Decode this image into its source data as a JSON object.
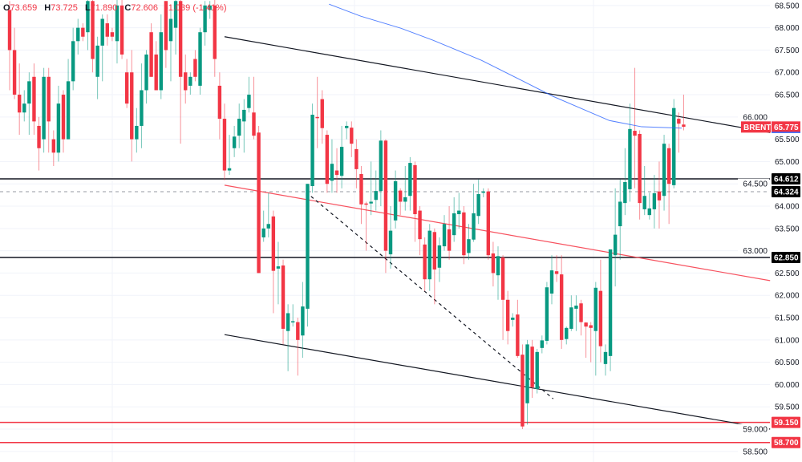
{
  "legend": {
    "o_label": "O",
    "o": "73.659",
    "h_label": "H",
    "h": "73.725",
    "l_label": "L",
    "l": "71.890",
    "c_label": "C",
    "c": "72.606",
    "change": "-1.039 (-1.41%)"
  },
  "colors": {
    "up": "#089981",
    "down": "#f23645",
    "ma": "#2962ff",
    "level": "#131722",
    "support": "#f23645",
    "trend_red": "#f7525f"
  },
  "chart_data": {
    "type": "candlestick",
    "symbol": "BRENT",
    "last_price": "65.775",
    "ylim": [
      58.4,
      68.55
    ],
    "yticks": [
      "58.500",
      "59.000",
      "59.500",
      "60.000",
      "60.500",
      "61.000",
      "61.500",
      "62.000",
      "62.500",
      "63.000",
      "63.500",
      "64.000",
      "64.500",
      "65.000",
      "65.500",
      "66.000",
      "66.500",
      "67.000",
      "67.500",
      "68.000",
      "68.500"
    ],
    "candles_ohlc": [
      [
        68.4,
        68.6,
        66.6,
        67.5
      ],
      [
        67.5,
        68.0,
        66.4,
        66.5
      ],
      [
        66.5,
        67.2,
        65.6,
        66.1
      ],
      [
        66.1,
        66.6,
        65.9,
        66.3
      ],
      [
        66.3,
        67.0,
        65.6,
        66.8
      ],
      [
        66.9,
        67.2,
        65.6,
        65.9
      ],
      [
        65.8,
        66.0,
        64.8,
        65.3
      ],
      [
        65.5,
        67.1,
        65.2,
        66.9
      ],
      [
        66.9,
        67.1,
        65.2,
        65.9
      ],
      [
        65.5,
        65.7,
        64.9,
        65.2
      ],
      [
        65.2,
        66.7,
        65.0,
        66.3
      ],
      [
        66.5,
        66.6,
        65.2,
        65.5
      ],
      [
        65.5,
        67.3,
        65.5,
        66.8
      ],
      [
        66.8,
        68.0,
        66.6,
        67.7
      ],
      [
        67.7,
        68.2,
        67.4,
        68.0
      ],
      [
        68.0,
        68.1,
        67.7,
        67.8
      ],
      [
        67.9,
        68.7,
        67.5,
        68.6
      ],
      [
        68.6,
        68.7,
        67.0,
        67.3
      ],
      [
        66.9,
        67.8,
        66.4,
        67.6
      ],
      [
        67.6,
        68.3,
        66.8,
        68.2
      ],
      [
        68.1,
        68.3,
        67.6,
        67.8
      ],
      [
        67.9,
        68.0,
        67.7,
        67.8
      ],
      [
        67.7,
        68.7,
        67.2,
        68.5
      ],
      [
        68.5,
        68.7,
        67.3,
        67.4
      ],
      [
        67.0,
        67.3,
        66.2,
        66.3
      ],
      [
        67.0,
        67.5,
        65.0,
        65.5
      ],
      [
        65.5,
        66.2,
        65.2,
        65.8
      ],
      [
        65.8,
        67.2,
        65.3,
        66.6
      ],
      [
        66.6,
        67.5,
        66.3,
        67.4
      ],
      [
        67.9,
        68.1,
        66.9,
        66.9
      ],
      [
        67.4,
        67.7,
        66.6,
        66.6
      ],
      [
        66.6,
        68.3,
        66.4,
        67.9
      ],
      [
        68.6,
        68.6,
        67.1,
        67.5
      ],
      [
        67.7,
        68.5,
        66.8,
        68.2
      ],
      [
        68.0,
        68.7,
        67.4,
        68.6
      ],
      [
        68.6,
        68.7,
        65.4,
        66.9
      ],
      [
        67.0,
        67.4,
        66.3,
        66.6
      ],
      [
        66.7,
        67.0,
        66.5,
        66.9
      ],
      [
        67.3,
        67.5,
        66.8,
        66.9
      ],
      [
        66.7,
        68.0,
        66.5,
        67.9
      ],
      [
        67.9,
        68.6,
        67.6,
        68.5
      ],
      [
        68.4,
        68.6,
        68.2,
        68.5
      ],
      [
        68.5,
        68.7,
        66.9,
        67.3
      ],
      [
        66.7,
        67.0,
        65.5,
        65.96
      ],
      [
        65.96,
        66.3,
        64.58,
        64.8
      ],
      [
        64.8,
        65.6,
        64.7,
        64.85
      ],
      [
        65.3,
        65.8,
        65.1,
        65.56
      ],
      [
        65.58,
        66.3,
        65.3,
        65.96
      ],
      [
        65.9,
        66.4,
        65.2,
        66.16
      ],
      [
        66.2,
        66.9,
        66.1,
        66.5
      ],
      [
        66.1,
        66.9,
        65.5,
        65.58
      ],
      [
        65.65,
        65.8,
        62.5,
        62.5
      ],
      [
        63.3,
        63.9,
        63.2,
        63.5
      ],
      [
        63.5,
        64.3,
        63.3,
        63.6
      ],
      [
        63.77,
        63.9,
        61.6,
        62.55
      ],
      [
        62.6,
        63.2,
        61.8,
        62.65
      ],
      [
        62.67,
        62.8,
        60.9,
        61.25
      ],
      [
        61.2,
        61.8,
        60.3,
        61.6
      ],
      [
        61.4,
        61.8,
        61.3,
        61.42
      ],
      [
        61.4,
        61.5,
        60.2,
        61.0
      ],
      [
        61.1,
        62.3,
        60.6,
        61.75
      ],
      [
        61.7,
        64.5,
        61.3,
        64.5
      ],
      [
        64.45,
        66.3,
        64.3,
        66.05
      ],
      [
        66.0,
        66.9,
        65.3,
        65.98
      ],
      [
        66.4,
        66.6,
        65.4,
        65.75
      ],
      [
        65.6,
        65.7,
        64.3,
        64.5
      ],
      [
        64.57,
        65.5,
        64.3,
        64.95
      ],
      [
        64.8,
        65.3,
        64.3,
        64.7
      ],
      [
        64.68,
        65.8,
        64.4,
        65.33
      ],
      [
        65.75,
        65.9,
        65.5,
        65.8
      ],
      [
        65.76,
        65.9,
        65.1,
        65.4
      ],
      [
        65.28,
        65.5,
        64.4,
        64.83
      ],
      [
        64.72,
        64.9,
        63.6,
        64.04
      ],
      [
        64.06,
        64.1,
        63.0,
        64.05
      ],
      [
        64.06,
        65.0,
        63.8,
        64.1
      ],
      [
        64.14,
        64.8,
        63.9,
        64.34
      ],
      [
        64.34,
        65.7,
        64.0,
        65.47
      ],
      [
        65.47,
        65.5,
        62.5,
        63.0
      ],
      [
        62.92,
        64.0,
        62.6,
        63.45
      ],
      [
        63.68,
        64.8,
        63.5,
        64.56
      ],
      [
        64.35,
        64.4,
        63.8,
        64.1
      ],
      [
        64.1,
        64.9,
        63.9,
        64.2
      ],
      [
        64.23,
        65.1,
        63.9,
        64.97
      ],
      [
        64.92,
        65.0,
        63.2,
        63.82
      ],
      [
        63.9,
        64.0,
        62.9,
        63.26
      ],
      [
        63.14,
        63.3,
        62.1,
        62.36
      ],
      [
        62.36,
        63.6,
        62.1,
        63.45
      ],
      [
        63.42,
        63.5,
        61.8,
        62.58
      ],
      [
        62.62,
        63.3,
        62.3,
        63.12
      ],
      [
        63.1,
        63.8,
        63.0,
        63.6
      ],
      [
        63.48,
        64.0,
        62.8,
        63.0
      ],
      [
        63.35,
        64.2,
        63.2,
        63.84
      ],
      [
        63.82,
        64.3,
        63.5,
        63.9
      ],
      [
        63.86,
        64.0,
        62.7,
        62.9
      ],
      [
        62.95,
        63.6,
        62.8,
        63.26
      ],
      [
        63.25,
        64.5,
        63.2,
        63.84
      ],
      [
        63.78,
        64.6,
        63.6,
        64.27
      ],
      [
        64.3,
        64.4,
        64.2,
        64.33
      ],
      [
        64.33,
        64.4,
        62.8,
        62.9
      ],
      [
        62.94,
        63.2,
        62.2,
        62.5
      ],
      [
        62.45,
        63.1,
        61.9,
        62.88
      ],
      [
        62.85,
        62.9,
        61.0,
        61.9
      ],
      [
        61.9,
        62.1,
        60.9,
        61.2
      ],
      [
        61.45,
        61.6,
        61.3,
        61.5
      ],
      [
        61.57,
        61.9,
        60.6,
        60.64
      ],
      [
        60.67,
        60.9,
        59.0,
        59.06
      ],
      [
        59.58,
        61.0,
        59.1,
        60.9
      ],
      [
        60.85,
        61.0,
        59.7,
        59.94
      ],
      [
        59.9,
        60.8,
        59.8,
        60.73
      ],
      [
        60.82,
        61.1,
        60.7,
        60.99
      ],
      [
        60.98,
        62.3,
        60.9,
        62.18
      ],
      [
        62.04,
        62.9,
        61.8,
        62.56
      ],
      [
        62.54,
        62.9,
        62.3,
        62.48
      ],
      [
        62.47,
        62.9,
        60.8,
        61.0
      ],
      [
        61.02,
        61.3,
        60.9,
        61.27
      ],
      [
        61.25,
        62.0,
        61.2,
        61.73
      ],
      [
        61.7,
        62.0,
        61.2,
        61.77
      ],
      [
        61.82,
        61.9,
        61.1,
        61.4
      ],
      [
        61.39,
        61.4,
        60.6,
        61.3
      ],
      [
        61.33,
        61.4,
        60.5,
        61.27
      ],
      [
        61.2,
        62.3,
        60.2,
        62.17
      ],
      [
        62.1,
        62.8,
        60.5,
        60.86
      ],
      [
        60.46,
        60.9,
        60.2,
        60.73
      ],
      [
        60.64,
        63.0,
        60.3,
        63.03
      ],
      [
        62.9,
        64.4,
        62.2,
        63.36
      ],
      [
        63.55,
        64.6,
        62.8,
        64.1
      ],
      [
        64.07,
        65.3,
        63.8,
        64.54
      ],
      [
        64.38,
        66.3,
        64.1,
        65.73
      ],
      [
        65.69,
        67.1,
        64.4,
        65.58
      ],
      [
        65.62,
        65.7,
        63.7,
        64.07
      ],
      [
        63.93,
        64.9,
        63.8,
        64.23
      ],
      [
        63.8,
        64.3,
        63.7,
        63.95
      ],
      [
        63.93,
        64.7,
        63.5,
        64.29
      ],
      [
        64.33,
        65.0,
        63.5,
        64.13
      ],
      [
        64.23,
        65.6,
        63.9,
        65.4
      ],
      [
        65.3,
        65.4,
        63.6,
        64.5
      ],
      [
        64.47,
        66.4,
        64.4,
        66.2
      ],
      [
        65.96,
        66.1,
        65.2,
        65.85
      ],
      [
        65.83,
        66.5,
        65.7,
        65.78
      ]
    ],
    "horizontal_levels": [
      {
        "price": 64.612,
        "label": "64.612",
        "style": "solid",
        "color": "#131722"
      },
      {
        "price": 64.324,
        "label": "64.324",
        "style": "dashed",
        "color": "#131722"
      },
      {
        "price": 62.85,
        "label": "62.850",
        "style": "solid",
        "color": "#131722"
      },
      {
        "price": 59.15,
        "label": "59.150",
        "style": "solid",
        "color": "#f23645"
      },
      {
        "price": 58.7,
        "label": "58.700",
        "style": "solid",
        "color": "#f23645"
      }
    ],
    "trendlines": [
      {
        "name": "upper-channel",
        "from": [
          44.0,
          67.8
        ],
        "to": [
          155.7,
          65.65
        ],
        "color": "#131722",
        "dashed": false
      },
      {
        "name": "lower-channel",
        "from": [
          44.0,
          61.12
        ],
        "to": [
          155.7,
          59.0
        ],
        "color": "#131722",
        "dashed": false
      },
      {
        "name": "red-trendline",
        "from": [
          44.0,
          64.47
        ],
        "to": [
          155.7,
          62.33
        ],
        "color": "#f7525f",
        "dashed": false
      },
      {
        "name": "dashed-decline",
        "from": [
          61.7,
          64.22
        ],
        "to": [
          111.3,
          59.68
        ],
        "color": "#131722",
        "dashed": true
      }
    ],
    "moving_average": [
      [
        65.4,
        68.53
      ],
      [
        71.9,
        68.26
      ],
      [
        80.1,
        67.99
      ],
      [
        86.7,
        67.72
      ],
      [
        96.6,
        67.27
      ],
      [
        104.8,
        66.82
      ],
      [
        111.3,
        66.46
      ],
      [
        122.8,
        65.92
      ],
      [
        129.4,
        65.78
      ],
      [
        137.6,
        65.75
      ]
    ]
  }
}
